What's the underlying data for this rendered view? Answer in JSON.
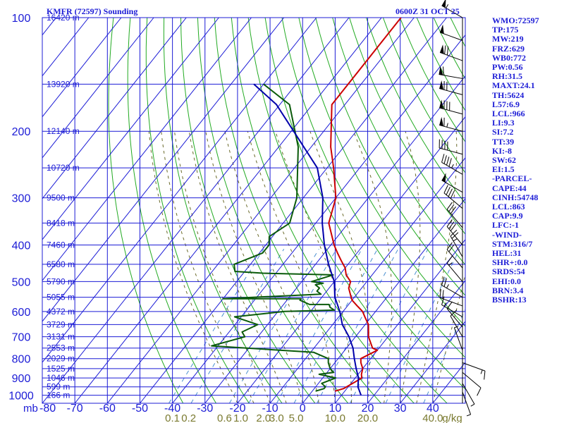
{
  "header": {
    "left_title": "KMFR (72597) Sounding",
    "right_title": "0600Z 31 OCT 25"
  },
  "indices": [
    "WMO:72597",
    "TP:175",
    "MW:219",
    "FRZ:629",
    "WB0:772",
    "PW:0.56",
    "RH:31.5",
    "MAXT:24.1",
    "TH:5624",
    "L57:6.9",
    "LCL:966",
    "LI:9.3",
    "SI:7.2",
    "TT:39",
    "KI:-8",
    "SW:62",
    "EI:1.5",
    "-PARCEL-",
    "CAPE:44",
    "CINH:54748",
    "LCL:863",
    "CAP:9.9",
    "LFC:-1",
    "-WIND-",
    "STM:316/7",
    "HEL:31",
    "SHR+:0.0",
    "SRDS:54",
    "EHI:0.0",
    "BRN:3.4",
    "BSHR:13"
  ],
  "colors": {
    "grid": "#1c1cd6",
    "isotherm": "#1c1cd6",
    "dry_adiabat": "#22aa22",
    "moist_adiabat": "#6a6a2a",
    "mixing_ratio": "#4a90d0",
    "temperature": "#cc0000",
    "dewpoint": "#0a5a0a",
    "parcel": "#0000aa",
    "wind": "#000000",
    "mixing_label": "#7a7a30"
  },
  "chart_data": {
    "type": "line",
    "title": "KMFR (72597) Sounding",
    "time": "0600Z 31 OCT 25",
    "y_axis_unit": "mb",
    "x_axis_unit": "°C",
    "pressure_levels": [
      100,
      200,
      300,
      400,
      500,
      600,
      700,
      800,
      900,
      1000
    ],
    "pressure_labels": [
      "100",
      "200",
      "300",
      "400",
      "500",
      "600",
      "700",
      "800",
      "900",
      "1000"
    ],
    "temperature_ticks": [
      -70,
      -60,
      -50,
      -40,
      -30,
      -20,
      -10,
      0,
      10,
      20,
      30,
      40
    ],
    "temperature_tick_labels": [
      "-70",
      "-60",
      "-50",
      "-40",
      "-30",
      "-20",
      "-10",
      "0",
      "10",
      "20",
      "30",
      "40"
    ],
    "x_range": [
      -80,
      50
    ],
    "p_range": [
      1050,
      100
    ],
    "height_labels": [
      {
        "p": 100,
        "label": "16420 m"
      },
      {
        "p": 150,
        "label": "13920 m"
      },
      {
        "p": 200,
        "label": "12140 m"
      },
      {
        "p": 250,
        "label": "10720 m"
      },
      {
        "p": 300,
        "label": "9500 m"
      },
      {
        "p": 350,
        "label": "8418 m"
      },
      {
        "p": 400,
        "label": "7460 m"
      },
      {
        "p": 450,
        "label": "6580 m"
      },
      {
        "p": 500,
        "label": "5790 m"
      },
      {
        "p": 550,
        "label": "5055 m"
      },
      {
        "p": 600,
        "label": "4372 m"
      },
      {
        "p": 650,
        "label": "3729 m"
      },
      {
        "p": 700,
        "label": "3131 m"
      },
      {
        "p": 750,
        "label": "2553 m"
      },
      {
        "p": 800,
        "label": "2029 m"
      },
      {
        "p": 850,
        "label": "1525 m"
      },
      {
        "p": 900,
        "label": "1046 m"
      },
      {
        "p": 950,
        "label": "599 m"
      },
      {
        "p": 1000,
        "label": "166 m"
      }
    ],
    "mixing_ratio_labels": [
      "0.1",
      "0.2",
      "0.6",
      "1.0",
      "2.0",
      "3.0",
      "5.0",
      "10.0",
      "20.0",
      "40.0",
      "g/kg"
    ],
    "mixing_ratio_positions": [
      -40,
      -35,
      -24,
      -19,
      -12,
      -8,
      -2,
      10,
      20,
      40,
      46
    ],
    "series": [
      {
        "name": "Temperature",
        "points": [
          [
            -64,
            100
          ],
          [
            -64,
            170
          ],
          [
            -54,
            220
          ],
          [
            -48,
            250
          ],
          [
            -40,
            300
          ],
          [
            -36,
            350
          ],
          [
            -29,
            400
          ],
          [
            -26,
            420
          ],
          [
            -23,
            440
          ],
          [
            -20,
            460
          ],
          [
            -18,
            480
          ],
          [
            -15,
            500
          ],
          [
            -14,
            520
          ],
          [
            -12,
            540
          ],
          [
            -10,
            560
          ],
          [
            -7,
            580
          ],
          [
            -4,
            600
          ],
          [
            -2,
            620
          ],
          [
            1,
            650
          ],
          [
            4,
            700
          ],
          [
            8,
            750
          ],
          [
            10,
            760
          ],
          [
            7,
            800
          ],
          [
            8,
            820
          ],
          [
            10,
            850
          ],
          [
            11,
            880
          ],
          [
            12,
            900
          ],
          [
            11,
            920
          ],
          [
            10,
            940
          ],
          [
            9,
            960
          ],
          [
            7,
            975
          ]
        ]
      },
      {
        "name": "Dewpoint",
        "points": [
          [
            -90,
            150
          ],
          [
            -77,
            170
          ],
          [
            -64,
            220
          ],
          [
            -52,
            300
          ],
          [
            -48,
            350
          ],
          [
            -51,
            380
          ],
          [
            -49,
            400
          ],
          [
            -49,
            420
          ],
          [
            -55,
            450
          ],
          [
            -53,
            470
          ],
          [
            -44,
            475
          ],
          [
            -22,
            480
          ],
          [
            -27,
            500
          ],
          [
            -23,
            505
          ],
          [
            -25,
            510
          ],
          [
            -23,
            520
          ],
          [
            -23,
            530
          ],
          [
            -21,
            540
          ],
          [
            -50,
            555
          ],
          [
            -26,
            555
          ],
          [
            -26,
            560
          ],
          [
            -22,
            575
          ],
          [
            -16,
            575
          ],
          [
            -15,
            585
          ],
          [
            -13,
            595
          ],
          [
            -28,
            600
          ],
          [
            -42,
            620
          ],
          [
            -33,
            650
          ],
          [
            -36,
            680
          ],
          [
            -34,
            700
          ],
          [
            -42,
            740
          ],
          [
            -9,
            770
          ],
          [
            -3,
            800
          ],
          [
            -2,
            820
          ],
          [
            0,
            850
          ],
          [
            2,
            870
          ],
          [
            -2,
            880
          ],
          [
            4,
            900
          ],
          [
            1,
            930
          ],
          [
            3,
            950
          ],
          [
            3,
            960
          ],
          [
            1,
            975
          ]
        ]
      },
      {
        "name": "Parcel",
        "points": [
          [
            -93,
            150
          ],
          [
            -81,
            170
          ],
          [
            -53,
            250
          ],
          [
            -44,
            300
          ],
          [
            -38,
            350
          ],
          [
            -32,
            400
          ],
          [
            -26,
            450
          ],
          [
            -20,
            500
          ],
          [
            -16,
            550
          ],
          [
            -11,
            600
          ],
          [
            -7,
            650
          ],
          [
            -2,
            700
          ],
          [
            2,
            750
          ],
          [
            5,
            800
          ],
          [
            8,
            850
          ],
          [
            11,
            900
          ],
          [
            13,
            950
          ],
          [
            16,
            1000
          ]
        ]
      }
    ],
    "wind_barbs": [
      {
        "p": 100,
        "dir": 300,
        "spd": 55
      },
      {
        "p": 115,
        "dir": 290,
        "spd": 50
      },
      {
        "p": 130,
        "dir": 290,
        "spd": 70
      },
      {
        "p": 145,
        "dir": 280,
        "spd": 60
      },
      {
        "p": 160,
        "dir": 285,
        "spd": 70
      },
      {
        "p": 180,
        "dir": 285,
        "spd": 80
      },
      {
        "p": 200,
        "dir": 285,
        "spd": 65
      },
      {
        "p": 230,
        "dir": 285,
        "spd": 40
      },
      {
        "p": 260,
        "dir": 300,
        "spd": 45
      },
      {
        "p": 290,
        "dir": 300,
        "spd": 50
      },
      {
        "p": 320,
        "dir": 310,
        "spd": 40
      },
      {
        "p": 360,
        "dir": 320,
        "spd": 30
      },
      {
        "p": 400,
        "dir": 320,
        "spd": 30
      },
      {
        "p": 430,
        "dir": 330,
        "spd": 25
      },
      {
        "p": 460,
        "dir": 320,
        "spd": 20
      },
      {
        "p": 500,
        "dir": 320,
        "spd": 15
      },
      {
        "p": 550,
        "dir": 300,
        "spd": 25
      },
      {
        "p": 580,
        "dir": 290,
        "spd": 20
      },
      {
        "p": 620,
        "dir": 300,
        "spd": 15
      },
      {
        "p": 660,
        "dir": 320,
        "spd": 10
      },
      {
        "p": 700,
        "dir": 330,
        "spd": 10
      },
      {
        "p": 760,
        "dir": 340,
        "spd": 5
      },
      {
        "p": 820,
        "dir": 110,
        "spd": 15
      },
      {
        "p": 870,
        "dir": 130,
        "spd": 10
      },
      {
        "p": 930,
        "dir": 150,
        "spd": 5
      },
      {
        "p": 980,
        "dir": 160,
        "spd": 5
      }
    ],
    "grid": true,
    "legend": "none"
  }
}
